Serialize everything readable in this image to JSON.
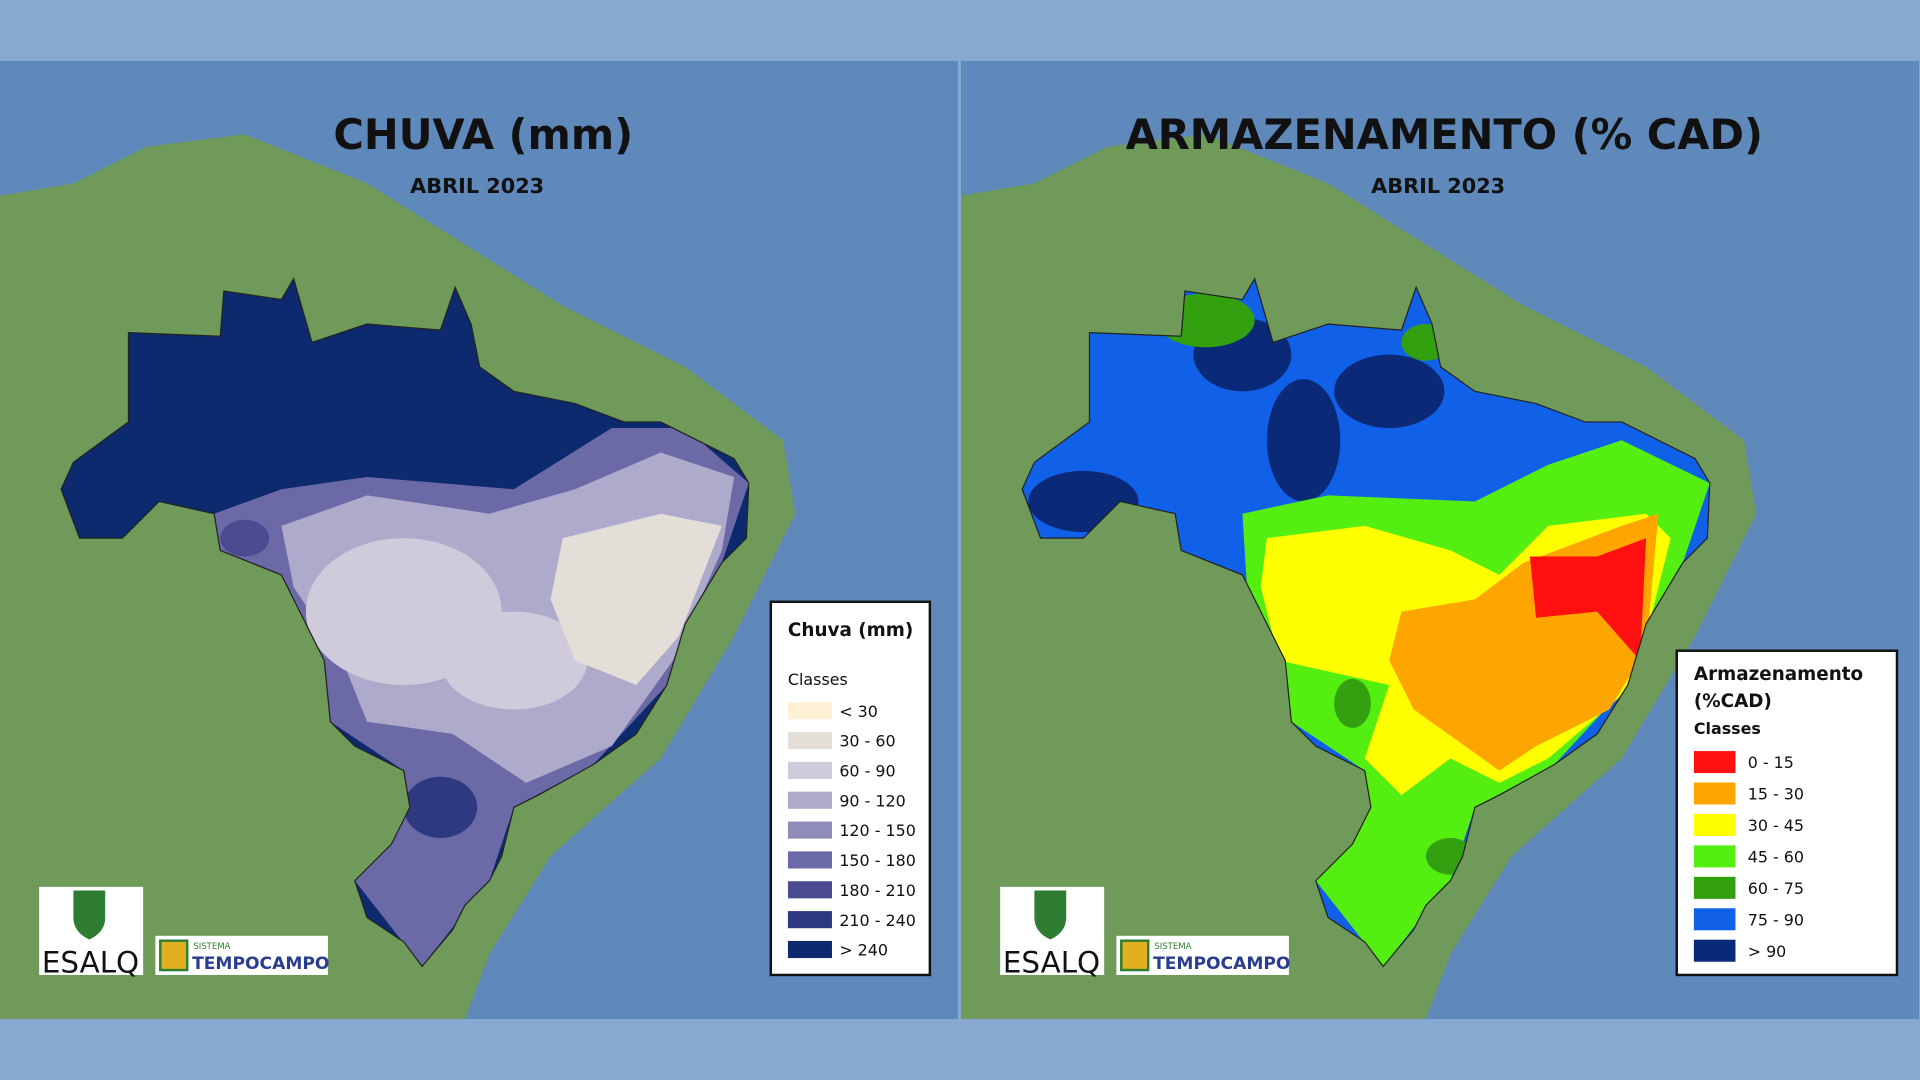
{
  "panels": [
    {
      "title": "CHUVA (mm)",
      "subtitle": "ABRIL 2023",
      "legend": {
        "title": "Chuva (mm)",
        "classes_label": "Classes",
        "items": [
          {
            "label": "< 30",
            "color": "#fdf0d5"
          },
          {
            "label": "30 - 60",
            "color": "#e3ded8"
          },
          {
            "label": "60 - 90",
            "color": "#cfcbdb"
          },
          {
            "label": "90 - 120",
            "color": "#aeaacb"
          },
          {
            "label": "120 - 150",
            "color": "#8f8cba"
          },
          {
            "label": "150 - 180",
            "color": "#6b6aa6"
          },
          {
            "label": "180 - 210",
            "color": "#4a4b91"
          },
          {
            "label": "210 - 240",
            "color": "#2e3a80"
          },
          {
            "label": "> 240",
            "color": "#0d2a6e"
          }
        ]
      },
      "logos": {
        "esalq": "ESALQ",
        "sistema": "SISTEMA",
        "tempocampo": "TEMPOCAMPO"
      }
    },
    {
      "title": "ARMAZENAMENTO (% CAD)",
      "subtitle": "ABRIL 2023",
      "legend": {
        "title": "Armazenamento (%CAD)",
        "classes_label": "Classes",
        "items": [
          {
            "label": "0 - 15",
            "color": "#ff1010"
          },
          {
            "label": "15 - 30",
            "color": "#ffa500"
          },
          {
            "label": "30 - 45",
            "color": "#ffff00"
          },
          {
            "label": "45 - 60",
            "color": "#55ee11"
          },
          {
            "label": "60 - 75",
            "color": "#33a010"
          },
          {
            "label": "75 - 90",
            "color": "#1160e8"
          },
          {
            "label": "> 90",
            "color": "#0a2a78"
          }
        ]
      },
      "logos": {
        "esalq": "ESALQ",
        "sistema": "SISTEMA",
        "tempocampo": "TEMPOCAMPO"
      }
    }
  ]
}
